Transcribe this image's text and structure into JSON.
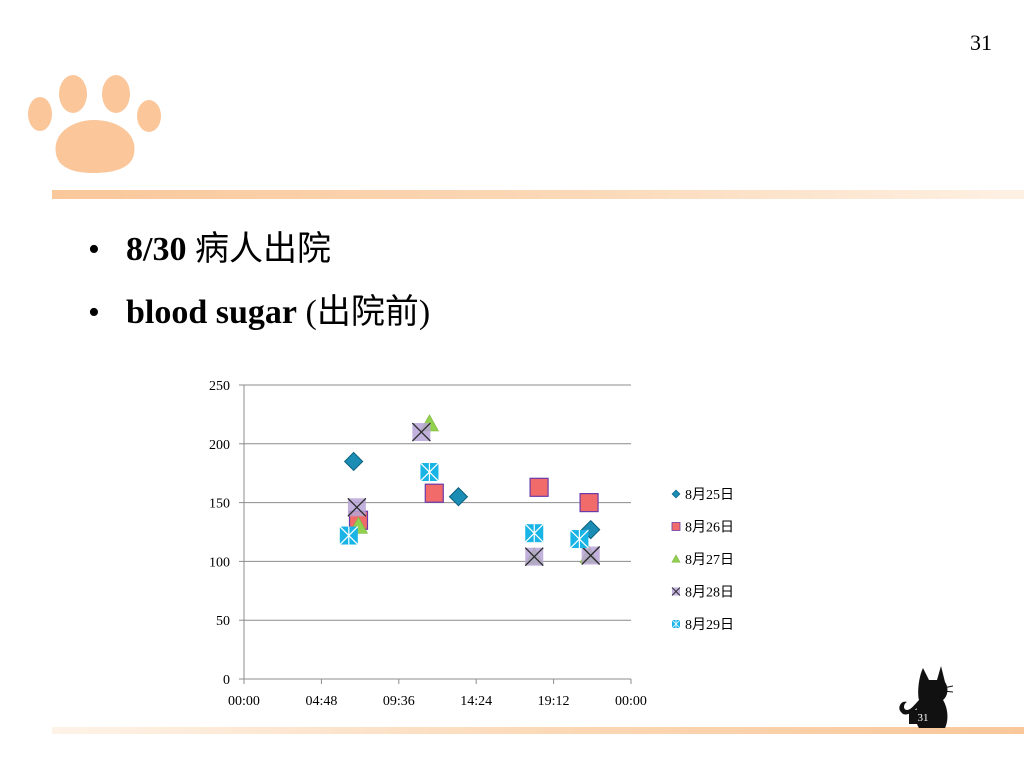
{
  "page_number": "31",
  "bullets": [
    {
      "bold": "8/30",
      "text": " 病人出院"
    },
    {
      "bold": "blood sugar",
      "text": "  (出院前)"
    }
  ],
  "chart_data": {
    "type": "scatter",
    "y_ticks": [
      "0",
      "50",
      "100",
      "150",
      "200",
      "250"
    ],
    "x_ticks": [
      "00:00",
      "04:48",
      "09:36",
      "14:24",
      "19:12",
      "00:00"
    ],
    "ylim": [
      0,
      250
    ],
    "xlim_hours": [
      0,
      24
    ],
    "grid": "horizontal",
    "legend_position": "right",
    "series": [
      {
        "name": "8月25日",
        "marker": "diamond",
        "color": "#1b8db5",
        "x": [
          "06:48",
          "13:18",
          "18:18",
          "21:30"
        ],
        "y": [
          185,
          155,
          163,
          127
        ]
      },
      {
        "name": "8月26日",
        "marker": "square",
        "color": "#f26b6b",
        "x": [
          "07:06",
          "11:48",
          "18:18",
          "21:24"
        ],
        "y": [
          135,
          158,
          163,
          150
        ]
      },
      {
        "name": "8月27日",
        "marker": "triangle",
        "color": "#92d050",
        "x": [
          "07:06",
          "11:30",
          "18:00",
          "21:24"
        ],
        "y": [
          130,
          217,
          104,
          105
        ]
      },
      {
        "name": "8月28日",
        "marker": "x",
        "color": "#b7a3d6",
        "x": [
          "07:00",
          "11:00",
          "18:00",
          "21:30"
        ],
        "y": [
          146,
          210,
          104,
          105
        ]
      },
      {
        "name": "8月29日",
        "marker": "asterisk-square",
        "color": "#19b4e6",
        "x": [
          "06:30",
          "11:30",
          "18:00",
          "20:48"
        ],
        "y": [
          122,
          176,
          124,
          119
        ]
      }
    ]
  },
  "cat_badge": "31",
  "colors": {
    "accent": "#f9c79a",
    "text": "#000000"
  },
  "icons": {
    "paw": "paw-icon",
    "cat": "cat-icon"
  }
}
